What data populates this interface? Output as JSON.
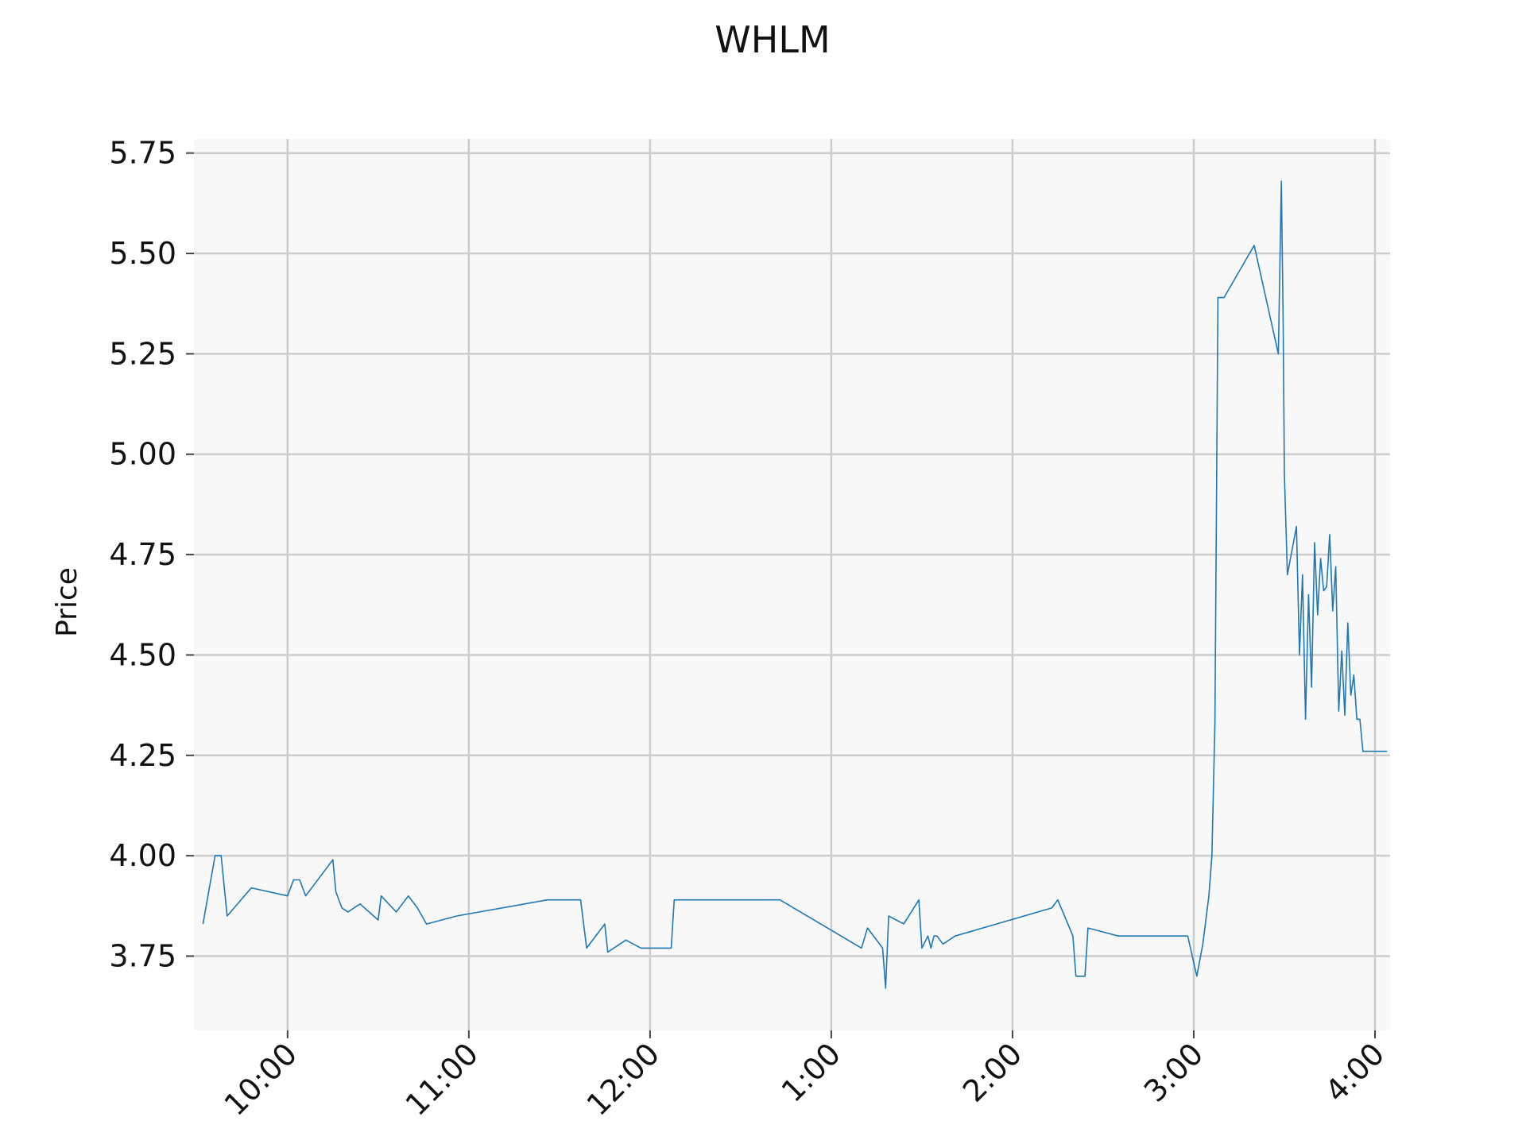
{
  "chart_data": {
    "type": "line",
    "title": "WHLM",
    "xlabel": "",
    "ylabel": "Price",
    "grid": true,
    "y_ticks": [
      3.75,
      4.0,
      4.25,
      4.5,
      4.75,
      5.0,
      5.25,
      5.5,
      5.75
    ],
    "y_tick_labels": [
      "3.75",
      "4.00",
      "4.25",
      "4.50",
      "4.75",
      "5.00",
      "5.25",
      "5.50",
      "5.75"
    ],
    "ylim": [
      3.565,
      5.785
    ],
    "x_ticks": [
      "10:00",
      "11:00",
      "12:00",
      "1:00",
      "2:00",
      "3:00",
      "4:00"
    ],
    "x_tick_labels": [
      "10:00",
      "11:00",
      "12:00",
      "1:00",
      "2:00",
      "3:00",
      "4:00"
    ],
    "xlim": [
      "09:29",
      "16:05"
    ],
    "colors": {
      "line": "#1f77b4",
      "plot_background": "#f8f8f8",
      "grid": "#cccccc"
    },
    "series": [
      {
        "x": [
          "09:32",
          "09:36",
          "09:38",
          "09:40",
          "09:48",
          "10:00",
          "10:02",
          "10:04",
          "10:06",
          "10:15",
          "10:16",
          "10:18",
          "10:20",
          "10:24",
          "10:30",
          "10:31",
          "10:36",
          "10:40",
          "10:43",
          "10:46",
          "10:56",
          "11:26",
          "11:37",
          "11:39",
          "11:45",
          "11:46",
          "11:52",
          "11:57",
          "12:07",
          "12:08",
          "12:43",
          "13:10",
          "13:12",
          "13:17",
          "13:18",
          "13:19",
          "13:24",
          "13:29",
          "13:30",
          "13:32",
          "13:33",
          "13:34",
          "13:35",
          "13:37",
          "13:41",
          "14:13",
          "14:15",
          "14:20",
          "14:21",
          "14:24",
          "14:25",
          "14:35",
          "14:58",
          "15:01",
          "15:03",
          "15:05",
          "15:06",
          "15:07",
          "15:08",
          "15:09",
          "15:10",
          "15:20",
          "15:28",
          "15:29",
          "15:29.6",
          "15:30",
          "15:31",
          "15:34",
          "15:35",
          "15:36",
          "15:37",
          "15:38",
          "15:39",
          "15:40",
          "15:41",
          "15:42",
          "15:43",
          "15:44",
          "15:45",
          "15:46",
          "15:47",
          "15:48",
          "15:49",
          "15:50",
          "15:51",
          "15:52",
          "15:53",
          "15:54",
          "15:55",
          "15:56",
          "15:57",
          "15:58",
          "15:59",
          "16:00",
          "16:02",
          "16:04"
        ],
        "y": [
          3.83,
          4.0,
          4.0,
          3.85,
          3.92,
          3.9,
          3.94,
          3.94,
          3.9,
          3.99,
          3.91,
          3.87,
          3.86,
          3.88,
          3.84,
          3.9,
          3.86,
          3.9,
          3.87,
          3.83,
          3.85,
          3.89,
          3.89,
          3.77,
          3.83,
          3.76,
          3.79,
          3.77,
          3.77,
          3.89,
          3.89,
          3.77,
          3.82,
          3.77,
          3.67,
          3.85,
          3.83,
          3.89,
          3.77,
          3.8,
          3.77,
          3.8,
          3.8,
          3.78,
          3.8,
          3.87,
          3.89,
          3.8,
          3.7,
          3.7,
          3.82,
          3.8,
          3.8,
          3.7,
          3.78,
          3.9,
          4.0,
          4.33,
          5.39,
          5.39,
          5.39,
          5.52,
          5.25,
          5.68,
          5.32,
          4.95,
          4.7,
          4.82,
          4.5,
          4.7,
          4.34,
          4.65,
          4.42,
          4.78,
          4.6,
          4.74,
          4.66,
          4.67,
          4.8,
          4.61,
          4.72,
          4.36,
          4.51,
          4.35,
          4.58,
          4.4,
          4.45,
          4.34,
          4.34,
          4.26,
          4.26,
          4.26,
          4.26,
          4.26,
          4.26,
          4.26
        ]
      }
    ]
  }
}
